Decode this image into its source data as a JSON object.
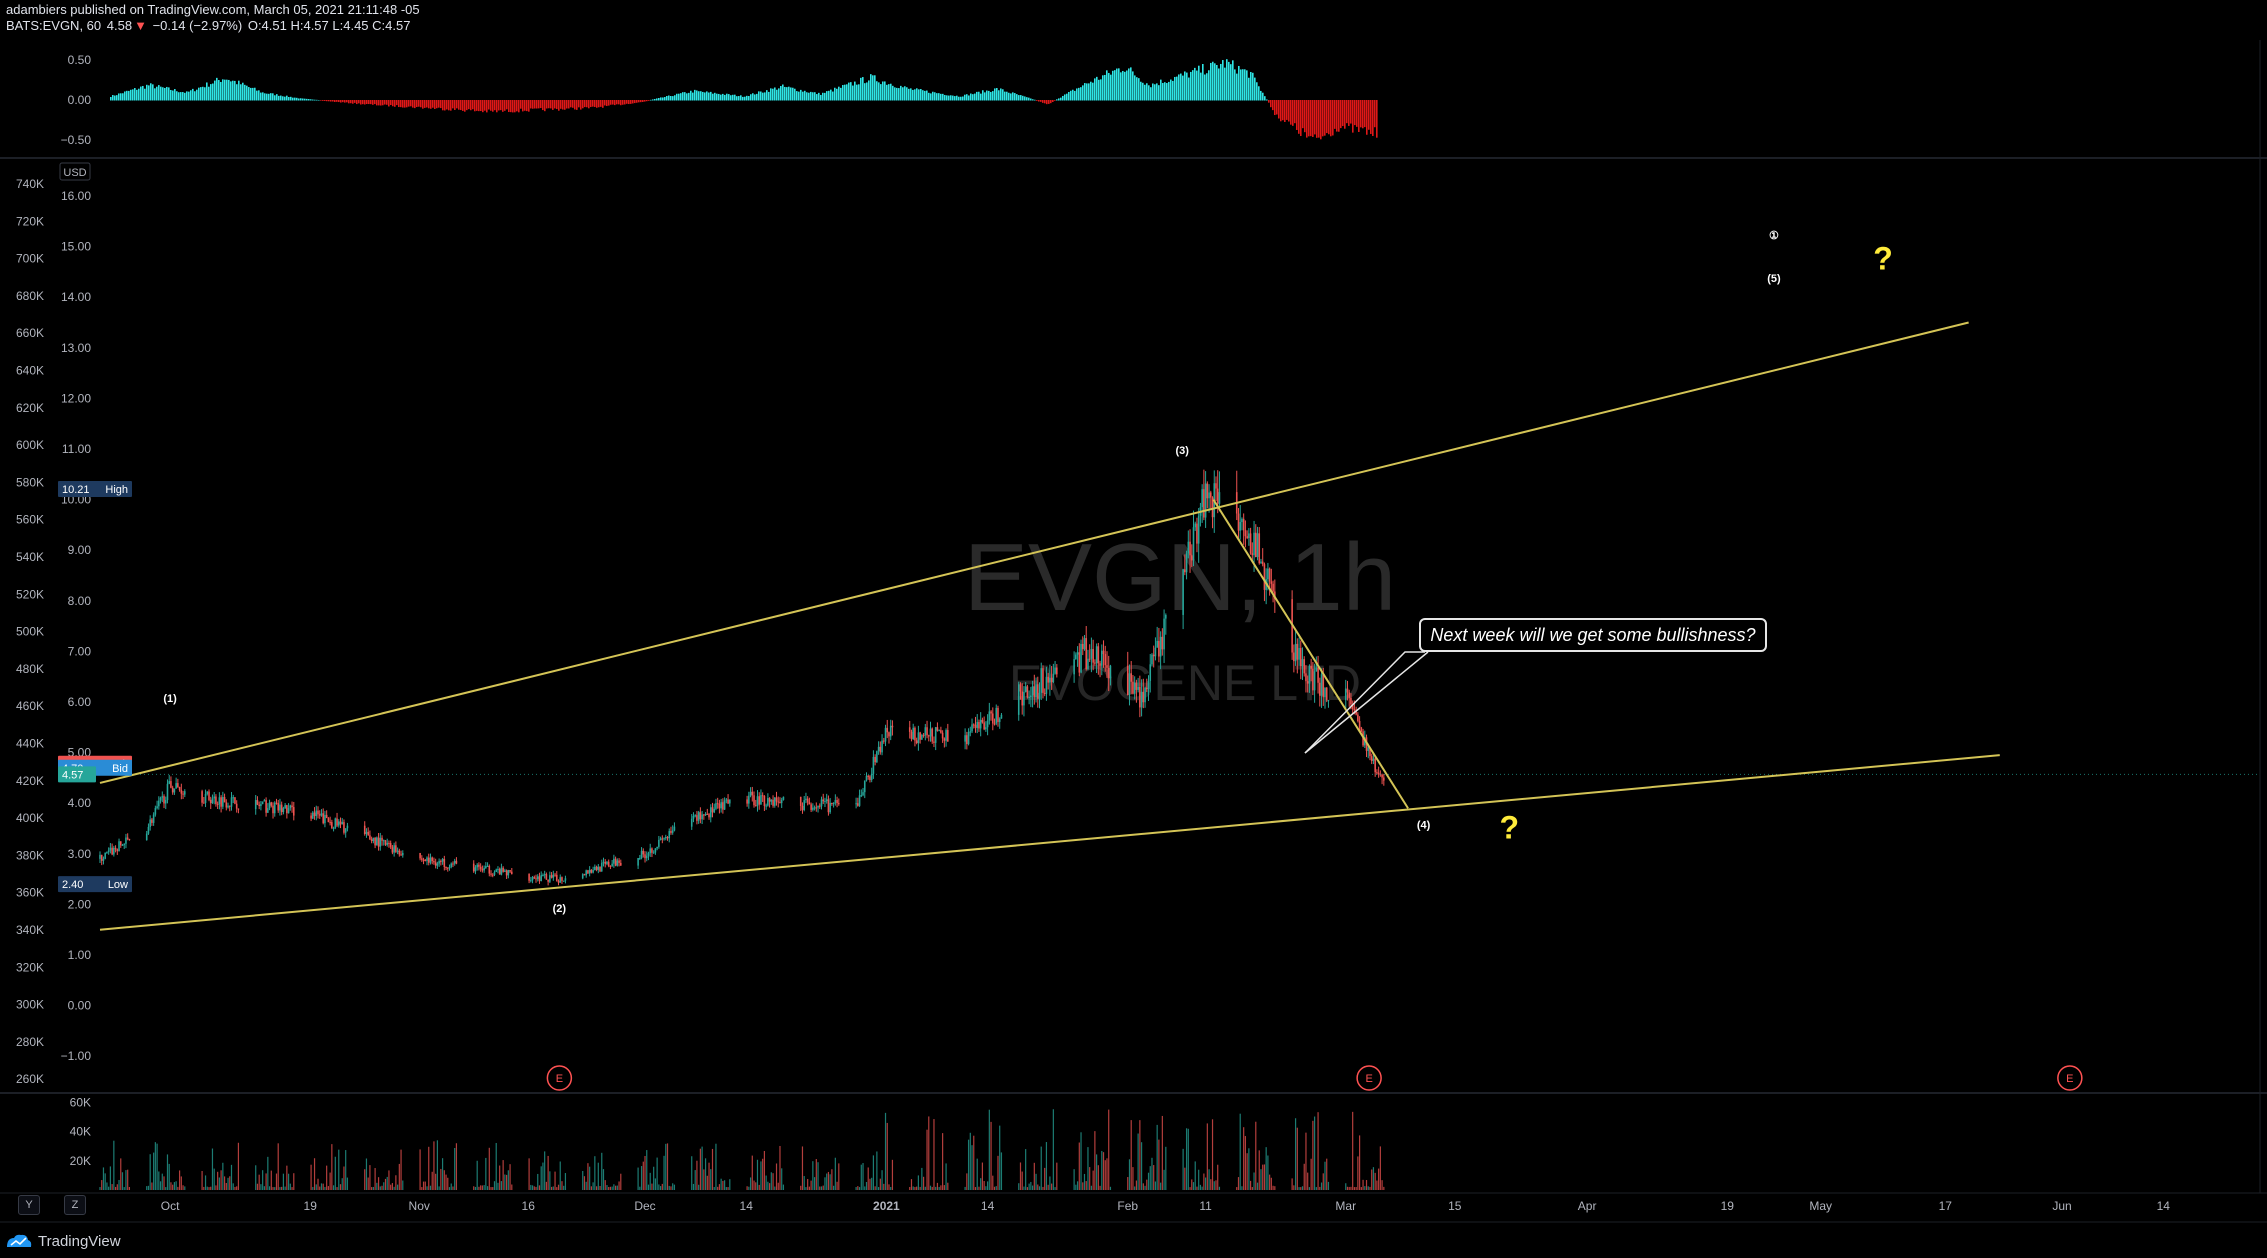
{
  "header": {
    "publisher_line": "adambiers published on TradingView.com, March 05, 2021 21:11:48 -05",
    "symbol": "BATS:EVGN, 60",
    "last": "4.58",
    "change": "−0.14 (−2.97%)",
    "ohlc": "O:4.51 H:4.57 L:4.45 C:4.57"
  },
  "watermark": {
    "ticker": "EVGN, 1h",
    "company": "EVOGENE LTD"
  },
  "price_axis": {
    "currency_label": "USD",
    "ticks": [
      "16.00",
      "15.00",
      "14.00",
      "13.00",
      "12.00",
      "11.00",
      "10.00",
      "9.00",
      "8.00",
      "7.00",
      "6.00",
      "5.00",
      "4.00",
      "3.00",
      "2.00",
      "1.00",
      "0.00",
      "−1.00"
    ],
    "volume_profile_ticks": [
      "740K",
      "720K",
      "700K",
      "680K",
      "660K",
      "640K",
      "620K",
      "600K",
      "580K",
      "560K",
      "540K",
      "520K",
      "500K",
      "480K",
      "460K",
      "440K",
      "420K",
      "400K",
      "380K",
      "360K",
      "340K",
      "320K",
      "300K",
      "280K",
      "260K"
    ],
    "badges": [
      {
        "value": "10.21",
        "tag": "High",
        "color": "#1e3a5f"
      },
      {
        "value": "4.78",
        "tag": "Ask",
        "color": "#f05350"
      },
      {
        "value": "4.70",
        "tag": "Bid",
        "color": "#2a8cd6"
      },
      {
        "value": "4.57",
        "tag": "",
        "color": "#26a69a"
      },
      {
        "value": "2.40",
        "tag": "Low",
        "color": "#1e3a5f"
      }
    ]
  },
  "oscillator_axis": {
    "ticks": [
      "0.50",
      "0.00",
      "−0.50"
    ]
  },
  "volume_axis": {
    "ticks": [
      "60K",
      "40K",
      "20K"
    ]
  },
  "time_axis": {
    "ticks": [
      "Oct",
      "19",
      "Nov",
      "16",
      "Dec",
      "14",
      "2021",
      "14",
      "Feb",
      "11",
      "Mar",
      "15",
      "Apr",
      "19",
      "May",
      "17",
      "Jun",
      "14"
    ]
  },
  "wave_labels": [
    "(1)",
    "(2)",
    "(3)",
    "(4)",
    "(5)",
    "①"
  ],
  "question_marks": [
    "?",
    "?"
  ],
  "earnings_marker": "E",
  "callout_text": "Next week will we get some bullishness?",
  "scale_buttons": [
    "Y",
    "Z"
  ],
  "footer": {
    "brand": "TradingView"
  },
  "colors": {
    "up": "#26a69a",
    "down": "#ef5350",
    "trendline": "#d4c456",
    "histo_pos": "#2ee6e6",
    "histo_neg": "#e01818",
    "question": "#ffeb3b",
    "earnings": "#ff5252"
  },
  "chart_data": {
    "type": "candlestick",
    "ylim": [
      -1.0,
      16.0
    ],
    "x_range": [
      "2020-09-22",
      "2021-06-20"
    ],
    "price_path": [
      {
        "x": "2020-09-22",
        "y": 2.9
      },
      {
        "x": "2020-09-28",
        "y": 3.5
      },
      {
        "x": "2020-10-01",
        "y": 4.35
      },
      {
        "x": "2020-10-06",
        "y": 4.1
      },
      {
        "x": "2020-10-19",
        "y": 3.8
      },
      {
        "x": "2020-11-02",
        "y": 2.9
      },
      {
        "x": "2020-11-16",
        "y": 2.55
      },
      {
        "x": "2020-11-20",
        "y": 2.5
      },
      {
        "x": "2020-12-01",
        "y": 3.0
      },
      {
        "x": "2020-12-07",
        "y": 3.7
      },
      {
        "x": "2020-12-14",
        "y": 4.1
      },
      {
        "x": "2020-12-28",
        "y": 3.9
      },
      {
        "x": "2021-01-01",
        "y": 5.4
      },
      {
        "x": "2021-01-11",
        "y": 5.3
      },
      {
        "x": "2021-01-20",
        "y": 6.3
      },
      {
        "x": "2021-01-27",
        "y": 7.0
      },
      {
        "x": "2021-02-03",
        "y": 6.1
      },
      {
        "x": "2021-02-08",
        "y": 8.5
      },
      {
        "x": "2021-02-11",
        "y": 10.2
      },
      {
        "x": "2021-02-16",
        "y": 9.7
      },
      {
        "x": "2021-02-19",
        "y": 8.3
      },
      {
        "x": "2021-02-24",
        "y": 6.5
      },
      {
        "x": "2021-03-01",
        "y": 6.1
      },
      {
        "x": "2021-03-05",
        "y": 4.57
      }
    ],
    "trendlines": [
      {
        "name": "upper",
        "from": {
          "x": "2020-09-22",
          "y": 4.4
        },
        "to": {
          "x": "2021-05-20",
          "y": 13.5
        }
      },
      {
        "name": "lower",
        "from": {
          "x": "2020-09-22",
          "y": 1.5
        },
        "to": {
          "x": "2021-05-24",
          "y": 4.95
        }
      },
      {
        "name": "wave4",
        "from": {
          "x": "2021-02-12",
          "y": 10.0
        },
        "to": {
          "x": "2021-03-09",
          "y": 3.9
        }
      }
    ],
    "earnings_dates": [
      "2020-11-20",
      "2021-03-04",
      "2021-06-02"
    ],
    "oscillator": {
      "ylim": [
        -0.6,
        0.6
      ]
    },
    "volume": {
      "ylim": [
        0,
        65000
      ]
    }
  }
}
